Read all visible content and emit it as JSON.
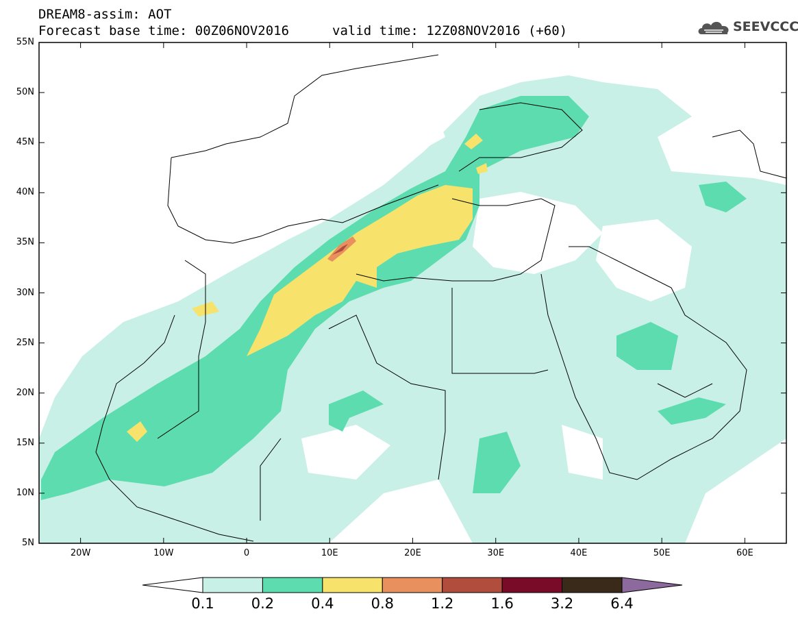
{
  "header": {
    "model_line": "DREAM8-assim: AOT",
    "base_time_line": "Forecast base time: 00Z06NOV2016",
    "valid_time_line": "valid time: 12Z08NOV2016 (+60)",
    "logo_text": "SEEVCCC",
    "logo_icon": "cloud-icon"
  },
  "map": {
    "lat_ticks": [
      "55N",
      "50N",
      "45N",
      "40N",
      "35N",
      "30N",
      "25N",
      "20N",
      "15N",
      "10N",
      "5N"
    ],
    "lon_ticks": [
      "20W",
      "10W",
      "0",
      "10E",
      "20E",
      "30E",
      "40E",
      "50E",
      "60E"
    ],
    "extent": {
      "lon_min": -25,
      "lon_max": 65,
      "lat_min": 5,
      "lat_max": 55
    }
  },
  "colorbar": {
    "labels": [
      "0.1",
      "0.2",
      "0.4",
      "0.8",
      "1.2",
      "1.6",
      "3.2",
      "6.4"
    ],
    "colors": [
      "#ffffff",
      "#c8f0e6",
      "#5ddcb0",
      "#f7e36c",
      "#e8915f",
      "#b04d3c",
      "#7a0b28",
      "#3a2a1a",
      "#8c6a9e"
    ]
  }
}
